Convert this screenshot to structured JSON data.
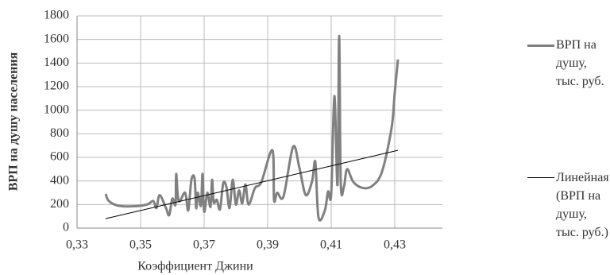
{
  "chart_data": {
    "type": "line",
    "x_label": "Коэффициент Джини",
    "y_label": "ВРП на душу населения",
    "xlim": [
      0.33,
      0.445
    ],
    "xticks": [
      {
        "value": 0.33,
        "label": "0,33"
      },
      {
        "value": 0.35,
        "label": "0,35"
      },
      {
        "value": 0.37,
        "label": "0,37"
      },
      {
        "value": 0.39,
        "label": "0,39"
      },
      {
        "value": 0.41,
        "label": "0,41"
      },
      {
        "value": 0.43,
        "label": "0,43"
      }
    ],
    "ylim": [
      0,
      1800
    ],
    "yticks": [
      0,
      200,
      400,
      600,
      800,
      1000,
      1200,
      1400,
      1600,
      1800
    ],
    "grid": true,
    "legend": "right",
    "series": [
      {
        "name": "ВРП на душу, тыс. руб.",
        "color": "#808080",
        "smooth": true,
        "x": [
          0.339,
          0.34,
          0.343,
          0.348,
          0.352,
          0.354,
          0.355,
          0.356,
          0.358,
          0.359,
          0.36,
          0.361,
          0.3612,
          0.362,
          0.364,
          0.365,
          0.366,
          0.367,
          0.3675,
          0.368,
          0.369,
          0.3695,
          0.37,
          0.371,
          0.372,
          0.3725,
          0.373,
          0.374,
          0.375,
          0.376,
          0.377,
          0.378,
          0.379,
          0.38,
          0.381,
          0.382,
          0.383,
          0.384,
          0.386,
          0.388,
          0.3915,
          0.392,
          0.393,
          0.395,
          0.398,
          0.4,
          0.402,
          0.404,
          0.405,
          0.406,
          0.408,
          0.409,
          0.41,
          0.411,
          0.412,
          0.4125,
          0.413,
          0.414,
          0.415,
          0.417,
          0.42,
          0.423,
          0.426,
          0.429,
          0.43,
          0.431
        ],
        "values": [
          290,
          230,
          190,
          185,
          200,
          230,
          170,
          280,
          170,
          110,
          250,
          200,
          460,
          230,
          300,
          150,
          410,
          420,
          170,
          300,
          190,
          460,
          140,
          300,
          180,
          410,
          220,
          240,
          160,
          380,
          350,
          170,
          410,
          200,
          320,
          210,
          370,
          200,
          340,
          390,
          660,
          240,
          300,
          270,
          690,
          510,
          280,
          400,
          560,
          90,
          150,
          310,
          290,
          1120,
          370,
          1630,
          390,
          350,
          500,
          390,
          340,
          360,
          480,
          850,
          1150,
          1430
        ]
      },
      {
        "name": "Линейная (ВРП на душу, тыс. руб.)",
        "color": "#000000",
        "smooth": false,
        "x": [
          0.339,
          0.431
        ],
        "values": [
          80,
          660
        ]
      }
    ]
  }
}
